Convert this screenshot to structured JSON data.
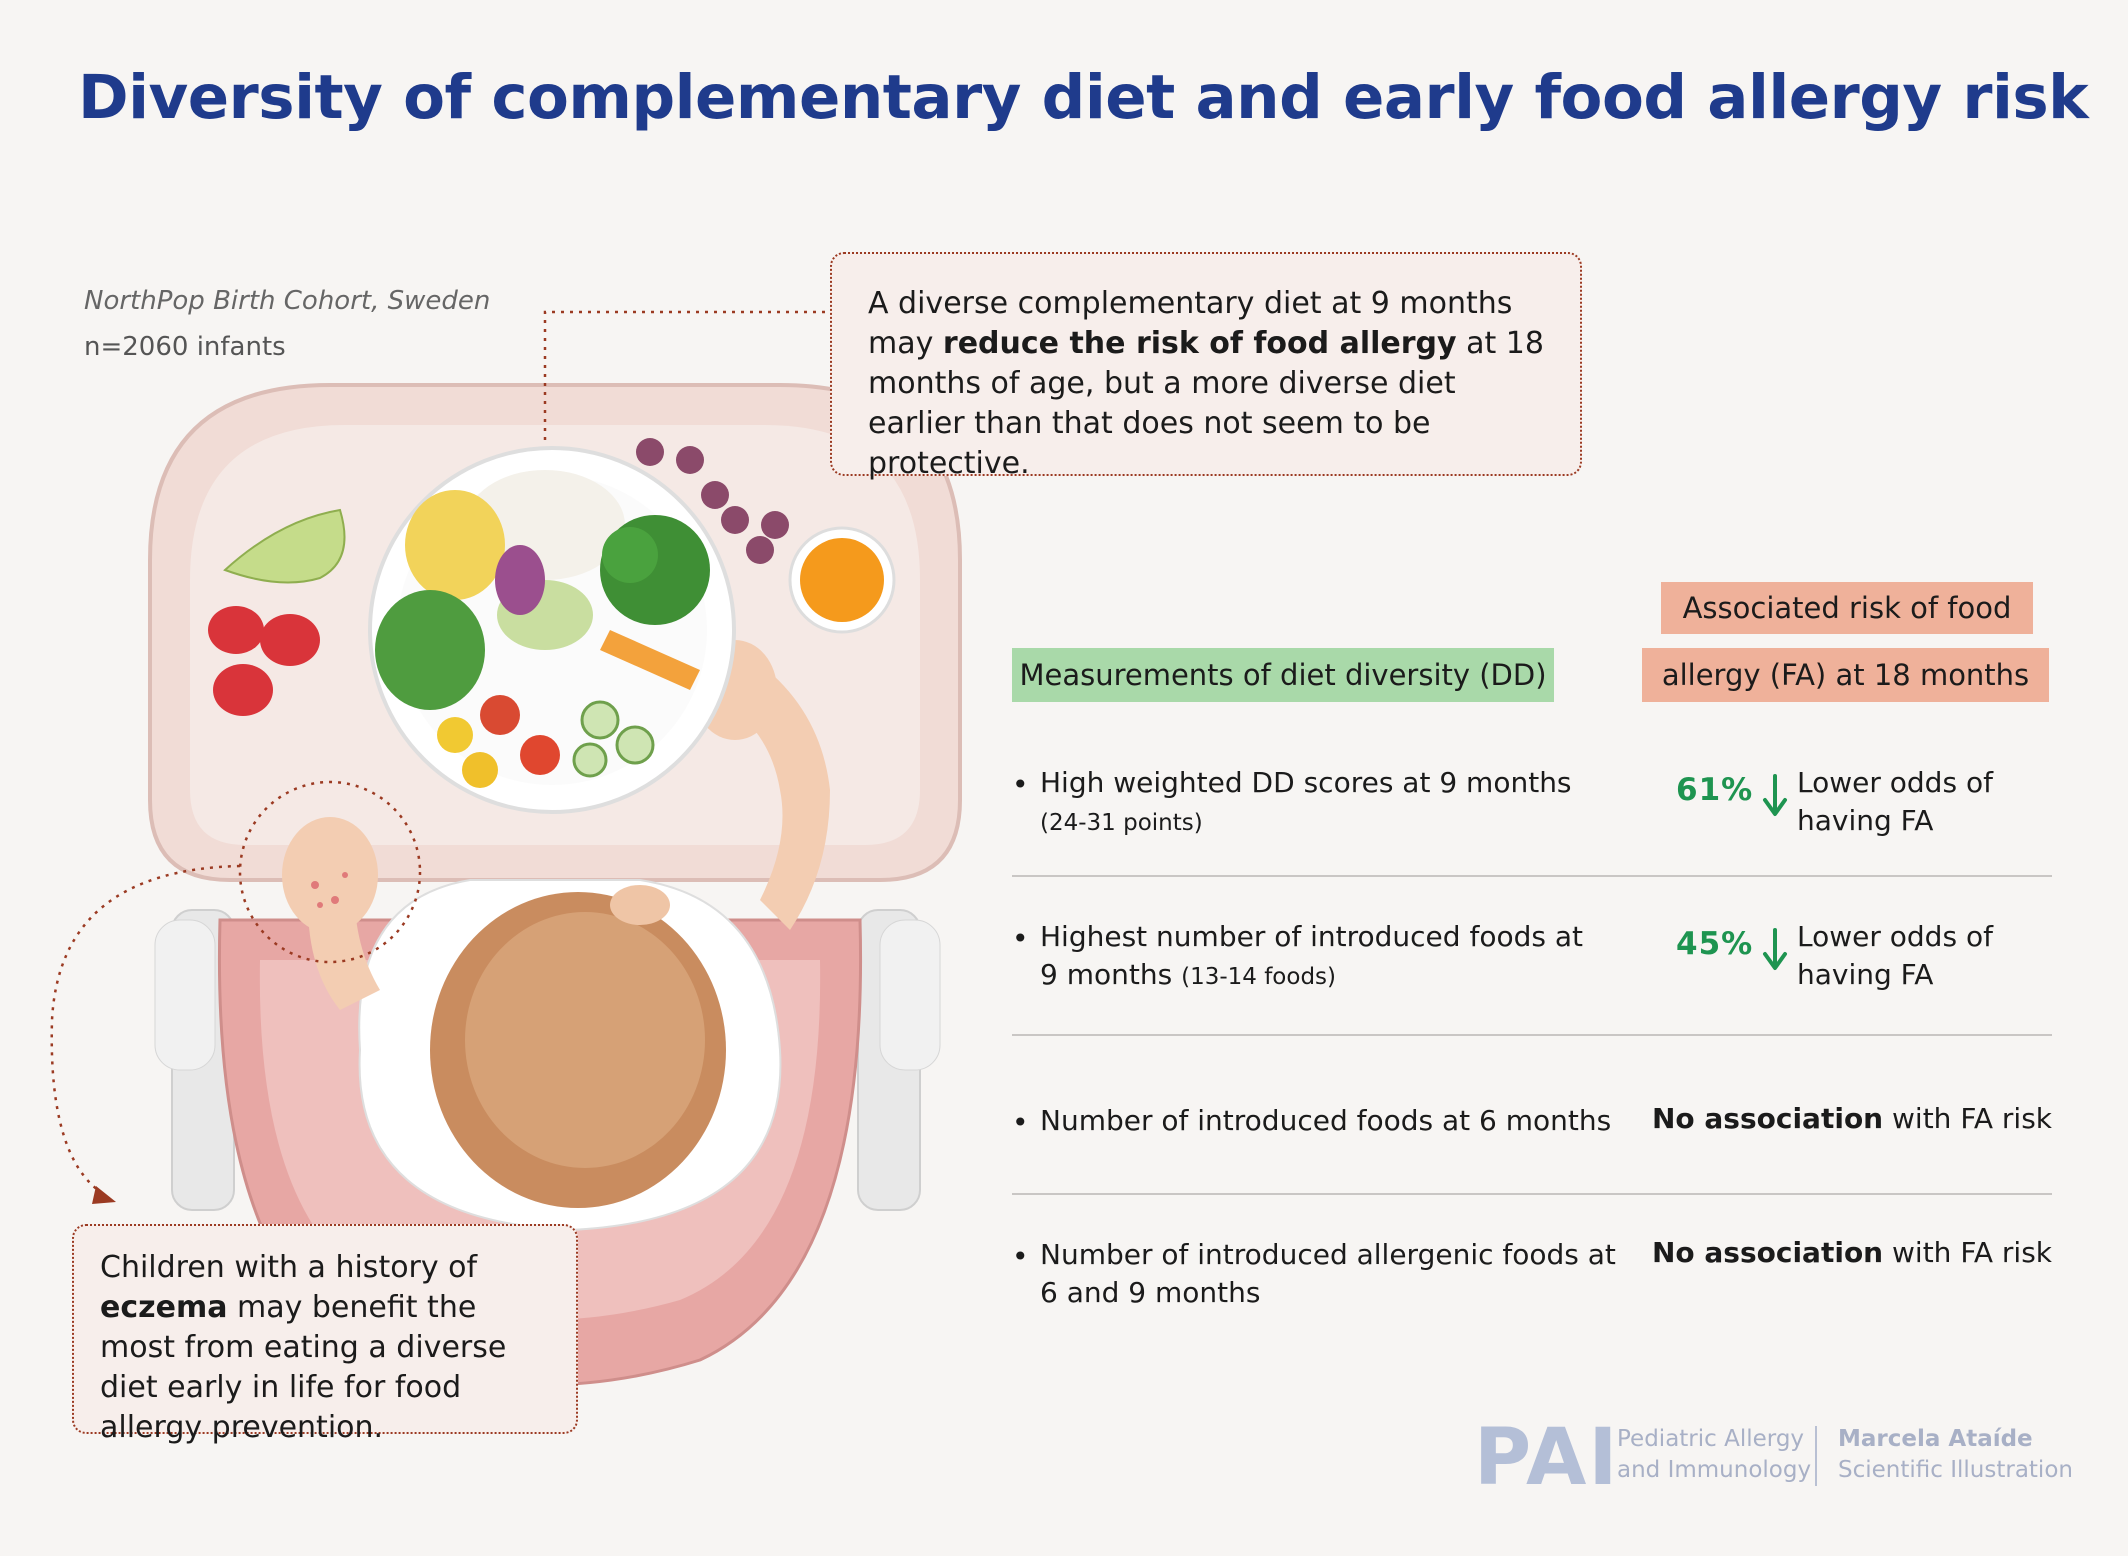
{
  "title": "Diversity of complementary diet and early food allergy risk",
  "cohort": {
    "name": "NorthPop Birth Cohort, Sweden",
    "sample": "n=2060 infants"
  },
  "callout_top": {
    "text_a": "A diverse complementary diet at 9 months may ",
    "text_bold": "reduce the risk of food allergy",
    "text_b": " at 18 months of age, but a more diverse diet earlier than that does not seem to be protective."
  },
  "callout_bottom": {
    "text_a": "Children with a history of ",
    "text_bold": "eczema",
    "text_b": " may benefit the most from eating a diverse diet early in life for food allergy prevention."
  },
  "headers": {
    "measurements": "Measurements of diet diversity (DD)",
    "risk_line1": "Associated risk of food",
    "risk_line2": "allergy (FA) at 18 months"
  },
  "rows": [
    {
      "line1": "High weighted DD scores at 9 months",
      "line2_main": "",
      "line2_small": "(24-31 points)",
      "percent": "61%",
      "odds_line1": "Lower odds of",
      "odds_line2": "having FA"
    },
    {
      "line1": "Highest number of introduced foods  at",
      "line2_main": "9 months ",
      "line2_small": "(13-14 foods)",
      "percent": "45%",
      "odds_line1": "Lower odds of",
      "odds_line2": "having FA"
    },
    {
      "line1": "Number of introduced foods at 6 months",
      "assoc_bold": "No association",
      "assoc_rest": " with FA risk"
    },
    {
      "line1": "Number of introduced allergenic foods at",
      "line2_main": "6 and 9 months",
      "assoc_bold": "No association",
      "assoc_rest": " with FA risk"
    }
  ],
  "footer": {
    "logo": "PAI",
    "journal_line1": "Pediatric Allergy",
    "journal_line2": "and Immunology",
    "artist_line1": "Marcela Ataíde",
    "artist_line2": "Scientific Illustration"
  },
  "colors": {
    "title": "#1f3b8c",
    "dd_header": "#a9d9a9",
    "risk_header": "#efb19a",
    "percent": "#1e9450",
    "callout_border": "#9b3a22"
  },
  "icons": [
    "down-arrow-icon",
    "bullet-icon"
  ]
}
